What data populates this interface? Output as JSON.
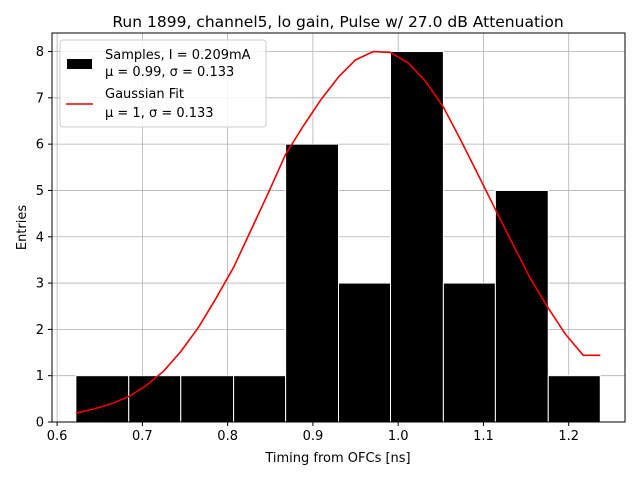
{
  "chart_data": {
    "type": "bar",
    "title": "Run 1899, channel5, lo gain, Pulse w/ 27.0 dB Attenuation",
    "xlabel": "Timing from OFCs [ns]",
    "ylabel": "Entries",
    "xlim": [
      0.594,
      1.266
    ],
    "ylim": [
      0,
      8.4
    ],
    "grid": true,
    "legend_position": "top-left",
    "x_ticks": [
      0.6,
      0.7,
      0.8,
      0.9,
      1.0,
      1.1,
      1.2
    ],
    "x_tick_labels": [
      "0.6",
      "0.7",
      "0.8",
      "0.9",
      "1.0",
      "1.1",
      "1.2"
    ],
    "y_ticks": [
      0,
      1,
      2,
      3,
      4,
      5,
      6,
      7,
      8
    ],
    "y_tick_labels": [
      "0",
      "1",
      "2",
      "3",
      "4",
      "5",
      "6",
      "7",
      "8"
    ],
    "histogram": {
      "name": "Samples",
      "legend_line1": "Samples, I = 0.209mA",
      "legend_line2": "μ = 0.99, σ = 0.133",
      "color": "#000000",
      "edge_color": "#ffffff",
      "bins": [
        {
          "x0": 0.622,
          "x1": 0.684,
          "count": 1
        },
        {
          "x0": 0.684,
          "x1": 0.745,
          "count": 1
        },
        {
          "x0": 0.745,
          "x1": 0.807,
          "count": 1
        },
        {
          "x0": 0.807,
          "x1": 0.868,
          "count": 1
        },
        {
          "x0": 0.868,
          "x1": 0.93,
          "count": 6
        },
        {
          "x0": 0.93,
          "x1": 0.991,
          "count": 3
        },
        {
          "x0": 0.991,
          "x1": 1.053,
          "count": 8
        },
        {
          "x0": 1.053,
          "x1": 1.114,
          "count": 3
        },
        {
          "x0": 1.114,
          "x1": 1.176,
          "count": 5
        },
        {
          "x0": 1.176,
          "x1": 1.237,
          "count": 1
        }
      ]
    },
    "fit": {
      "name": "Gaussian Fit",
      "legend_line1": "Gaussian Fit",
      "legend_line2": "μ = 1, σ = 0.133",
      "color": "#ee0000",
      "x": [
        0.622,
        0.643,
        0.663,
        0.684,
        0.704,
        0.725,
        0.745,
        0.766,
        0.786,
        0.807,
        0.827,
        0.848,
        0.868,
        0.889,
        0.909,
        0.93,
        0.95,
        0.971,
        0.991,
        1.012,
        1.032,
        1.053,
        1.073,
        1.094,
        1.114,
        1.135,
        1.155,
        1.176,
        1.196,
        1.217,
        1.237
      ],
      "y": [
        0.19,
        0.28,
        0.39,
        0.55,
        0.78,
        1.1,
        1.52,
        2.05,
        2.66,
        3.34,
        4.13,
        4.96,
        5.78,
        6.4,
        6.95,
        7.45,
        7.82,
        8.0,
        7.98,
        7.75,
        7.36,
        6.8,
        6.1,
        5.33,
        4.59,
        3.82,
        3.1,
        2.46,
        1.9,
        1.44,
        1.44
      ]
    }
  }
}
